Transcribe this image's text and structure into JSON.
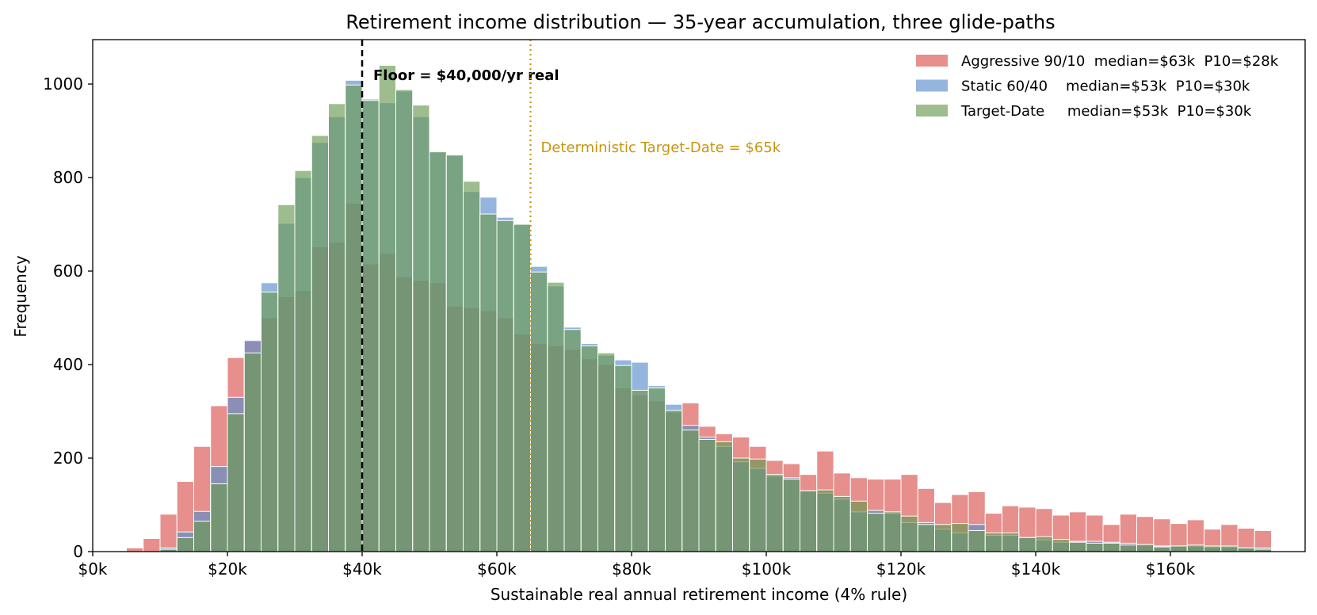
{
  "chart_data": {
    "type": "bar",
    "title": "Retirement income distribution — 35-year accumulation, three glide-paths",
    "xlabel": "Sustainable real annual retirement income  (4% rule)",
    "ylabel": "Frequency",
    "xlim": [
      0,
      180
    ],
    "ylim": [
      0,
      1095
    ],
    "x_tick_values": [
      0,
      20,
      40,
      60,
      80,
      100,
      120,
      140,
      160
    ],
    "x_tick_labels": [
      "$0k",
      "$20k",
      "$40k",
      "$60k",
      "$80k",
      "$100k",
      "$120k",
      "$140k",
      "$160k"
    ],
    "y_tick_values": [
      0,
      200,
      400,
      600,
      800,
      1000
    ],
    "y_tick_labels": [
      "0",
      "200",
      "400",
      "600",
      "800",
      "1000"
    ],
    "bin_start": 5,
    "bin_width": 2.5,
    "legend_position": "top-right",
    "grid": false,
    "series": [
      {
        "name": "Aggressive 90/10  median=$63k  P10=$28k",
        "color": "#d9534f",
        "values": [
          8,
          28,
          80,
          150,
          225,
          312,
          415,
          450,
          500,
          545,
          558,
          652,
          662,
          745,
          615,
          638,
          588,
          580,
          575,
          525,
          522,
          515,
          500,
          465,
          445,
          440,
          432,
          412,
          400,
          350,
          335,
          322,
          298,
          318,
          268,
          252,
          245,
          225,
          195,
          188,
          165,
          215,
          168,
          158,
          155,
          155,
          165,
          135,
          105,
          122,
          128,
          82,
          98,
          95,
          92,
          78,
          85,
          78,
          58,
          80,
          75,
          70,
          60,
          68,
          48,
          58,
          50,
          45
        ]
      },
      {
        "name": "Static 60/40    median=$53k  P10=$30k",
        "color": "#5b8ecb",
        "values": [
          0,
          0,
          8,
          42,
          86,
          182,
          330,
          452,
          575,
          702,
          800,
          875,
          930,
          1008,
          968,
          960,
          985,
          930,
          855,
          850,
          770,
          758,
          715,
          700,
          610,
          568,
          480,
          445,
          420,
          410,
          405,
          355,
          315,
          270,
          245,
          225,
          192,
          178,
          162,
          158,
          130,
          125,
          112,
          85,
          88,
          82,
          62,
          62,
          48,
          40,
          58,
          35,
          35,
          30,
          25,
          20,
          22,
          22,
          20,
          18,
          15,
          12,
          12,
          12,
          10,
          10,
          8,
          8
        ]
      },
      {
        "name": "Target-Date     median=$53k  P10=$30k",
        "color": "#6a9a52",
        "values": [
          0,
          0,
          5,
          30,
          65,
          145,
          295,
          425,
          555,
          742,
          815,
          890,
          958,
          998,
          965,
          1040,
          988,
          955,
          855,
          848,
          792,
          722,
          708,
          700,
          598,
          576,
          475,
          440,
          425,
          398,
          345,
          350,
          302,
          260,
          240,
          235,
          200,
          198,
          165,
          155,
          130,
          132,
          118,
          108,
          82,
          85,
          76,
          58,
          58,
          60,
          45,
          40,
          40,
          30,
          32,
          26,
          20,
          18,
          18,
          14,
          15,
          10,
          12,
          14,
          12,
          12,
          8,
          5
        ]
      }
    ],
    "annotations": [
      {
        "text": "Floor = $40,000/yr real",
        "x": 40,
        "color": "#000000",
        "style": "dashed"
      },
      {
        "text": "Deterministic Target-Date = $65k",
        "x": 65,
        "color": "#c8960c",
        "style": "dotted"
      }
    ]
  }
}
